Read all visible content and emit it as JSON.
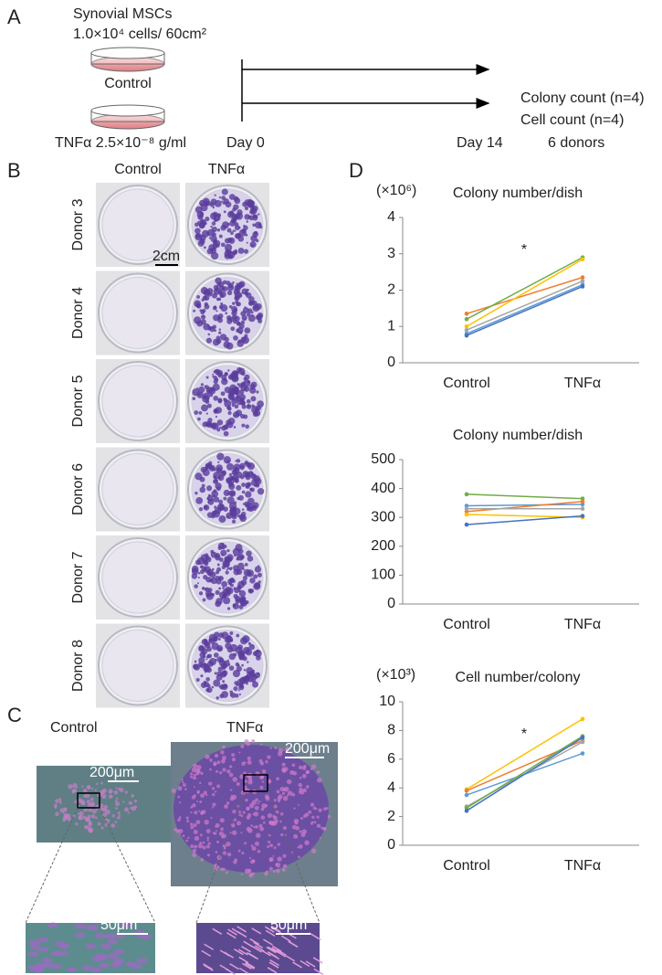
{
  "panel_a": {
    "label": "A",
    "cells": "Synovial MSCs",
    "density": "1.0×10⁴ cells/ 60cm²",
    "control": "Control",
    "tnf": "TNFα 2.5×10⁻⁸ g/ml",
    "day_start": "Day 0",
    "day_end": "Day 14",
    "outcomes": [
      "Colony count (n=4)",
      "Cell count (n=4)",
      "6 donors"
    ]
  },
  "panel_b": {
    "label": "B",
    "columns": [
      "Control",
      "TNFα"
    ],
    "rows": [
      "Donor 3",
      "Donor 4",
      "Donor 5",
      "Donor 6",
      "Donor 7",
      "Donor 8"
    ],
    "scale_bar": "2cm"
  },
  "panel_c": {
    "label": "C",
    "columns": [
      "Control",
      "TNFα"
    ],
    "scale_bars": [
      "200μm",
      "200μm",
      "50μm",
      "50μm"
    ]
  },
  "panel_d": {
    "label": "D"
  },
  "chart_data": [
    {
      "type": "line",
      "title": "Colony number/dish",
      "unit": "(×10⁶)",
      "annotation": "*",
      "categories": [
        "Control",
        "TNFα"
      ],
      "ylim": [
        0,
        4
      ],
      "yticks": [
        0,
        1,
        2,
        3,
        4
      ],
      "series": [
        {
          "color": "#ed7d31",
          "values": [
            1.35,
            2.35
          ]
        },
        {
          "color": "#70ad47",
          "values": [
            1.2,
            2.9
          ]
        },
        {
          "color": "#ffc000",
          "values": [
            1.0,
            2.85
          ]
        },
        {
          "color": "#a5a5a5",
          "values": [
            0.9,
            2.25
          ]
        },
        {
          "color": "#5b9bd5",
          "values": [
            0.8,
            2.15
          ]
        },
        {
          "color": "#4472c4",
          "values": [
            0.75,
            2.1
          ]
        }
      ]
    },
    {
      "type": "line",
      "title": "Colony number/dish",
      "categories": [
        "Control",
        "TNFα"
      ],
      "ylim": [
        0,
        500
      ],
      "yticks": [
        0,
        100,
        200,
        300,
        400,
        500
      ],
      "series": [
        {
          "color": "#70ad47",
          "values": [
            380,
            365
          ]
        },
        {
          "color": "#5b9bd5",
          "values": [
            340,
            345
          ]
        },
        {
          "color": "#ed7d31",
          "values": [
            320,
            355
          ]
        },
        {
          "color": "#a5a5a5",
          "values": [
            330,
            330
          ]
        },
        {
          "color": "#ffc000",
          "values": [
            310,
            300
          ]
        },
        {
          "color": "#4472c4",
          "values": [
            275,
            305
          ]
        }
      ]
    },
    {
      "type": "line",
      "title": "Cell number/colony",
      "unit": "(×10³)",
      "annotation": "*",
      "categories": [
        "Control",
        "TNFα"
      ],
      "ylim": [
        0,
        10
      ],
      "yticks": [
        0,
        2,
        4,
        6,
        8,
        10
      ],
      "series": [
        {
          "color": "#ffc000",
          "values": [
            3.9,
            8.8
          ]
        },
        {
          "color": "#ed7d31",
          "values": [
            3.8,
            7.3
          ]
        },
        {
          "color": "#5b9bd5",
          "values": [
            3.5,
            6.4
          ]
        },
        {
          "color": "#a5a5a5",
          "values": [
            2.7,
            7.2
          ]
        },
        {
          "color": "#70ad47",
          "values": [
            2.6,
            7.6
          ]
        },
        {
          "color": "#4472c4",
          "values": [
            2.4,
            7.5
          ]
        }
      ]
    }
  ]
}
